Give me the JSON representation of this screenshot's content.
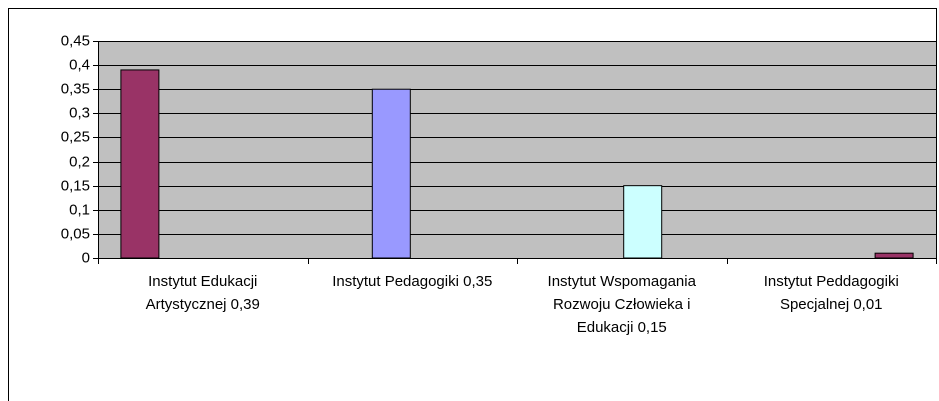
{
  "chart_data": {
    "type": "bar",
    "categories": [
      "Instytut Edukacji Artystycznej 0,39",
      "Instytut Pedagogiki 0,35",
      "Instytut Wspomagania Rozwoju Człowieka i Edukacji 0,15",
      "Instytut Peddagogiki Specjalnej  0,01"
    ],
    "series": [
      {
        "color": "#993366",
        "values": [
          0.39,
          null,
          null,
          null
        ]
      },
      {
        "color": "#9999ff",
        "values": [
          null,
          0.35,
          null,
          null
        ]
      },
      {
        "color": "#ccffff",
        "values": [
          null,
          null,
          0.15,
          null
        ]
      },
      {
        "color": "#993366",
        "values": [
          null,
          null,
          null,
          0.01
        ]
      }
    ],
    "ylim": [
      0,
      0.45
    ],
    "yticks": [
      0,
      {
        "value": 0.05,
        "label": "0,05"
      },
      {
        "value": 0.1,
        "label": "0,1"
      },
      {
        "value": 0.15,
        "label": "0,15"
      },
      {
        "value": 0.2,
        "label": "0,2"
      },
      {
        "value": 0.25,
        "label": "0,25"
      },
      {
        "value": 0.3,
        "label": "0,3"
      },
      {
        "value": 0.35,
        "label": "0,35"
      },
      {
        "value": 0.4,
        "label": "0,4"
      },
      {
        "value": 0.45,
        "label": "0,45"
      }
    ],
    "grid": true
  }
}
